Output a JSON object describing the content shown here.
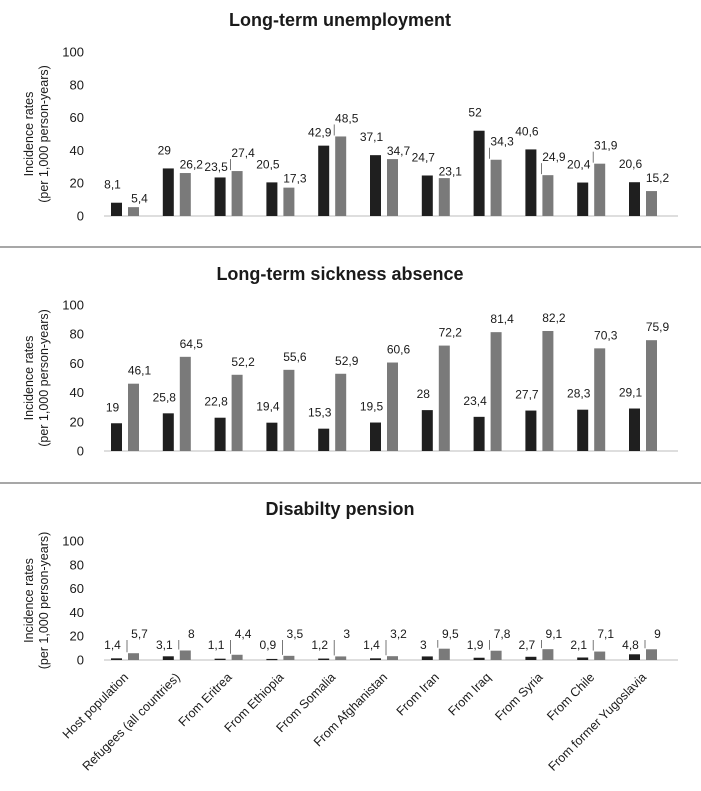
{
  "chart_data": [
    {
      "type": "bar",
      "title": "Long-term unemployment",
      "ylabel": [
        "Incidence rates",
        "(per 1,000 person-years)"
      ],
      "ylim": [
        0,
        100
      ],
      "yticks": [
        0,
        20,
        40,
        60,
        80,
        100
      ],
      "categories": [
        "Host population",
        "Refugees (all countries)",
        "From Eritrea",
        "From Ethiopia",
        "From Somalia",
        "From Afghanistan",
        "From Iran",
        "From Iraq",
        "From Syria",
        "From Chile",
        "From former Yugoslavia"
      ],
      "series": [
        {
          "name": "Series 1",
          "color": "#1f1f1f",
          "values": [
            8.1,
            29,
            23.5,
            20.5,
            42.9,
            37.1,
            24.7,
            52,
            40.6,
            20.4,
            20.6
          ],
          "labels": [
            "8,1",
            "29",
            "23,5",
            "20,5",
            "42,9",
            "37,1",
            "24,7",
            "52",
            "40,6",
            "20,4",
            "20,6"
          ]
        },
        {
          "name": "Series 2",
          "color": "#7a7a7a",
          "values": [
            5.4,
            26.2,
            27.4,
            17.3,
            48.5,
            34.7,
            23.1,
            34.3,
            24.9,
            31.9,
            15.2
          ],
          "labels": [
            "5,4",
            "26,2",
            "27,4",
            "17,3",
            "48,5",
            "34,7",
            "23,1",
            "34,3",
            "24,9",
            "31,9",
            "15,2"
          ]
        }
      ]
    },
    {
      "type": "bar",
      "title": "Long-term sickness absence",
      "ylabel": [
        "Incidence rates",
        "(per 1,000 person-years)"
      ],
      "ylim": [
        0,
        100
      ],
      "yticks": [
        0,
        20,
        40,
        60,
        80,
        100
      ],
      "categories": [
        "Host population",
        "Refugees (all countries)",
        "From Eritrea",
        "From Ethiopia",
        "From Somalia",
        "From Afghanistan",
        "From Iran",
        "From Iraq",
        "From Syria",
        "From Chile",
        "From former Yugoslavia"
      ],
      "series": [
        {
          "name": "Series 1",
          "color": "#1f1f1f",
          "values": [
            19,
            25.8,
            22.8,
            19.4,
            15.3,
            19.5,
            28,
            23.4,
            27.7,
            28.3,
            29.1
          ],
          "labels": [
            "19",
            "25,8",
            "22,8",
            "19,4",
            "15,3",
            "19,5",
            "28",
            "23,4",
            "27,7",
            "28,3",
            "29,1"
          ]
        },
        {
          "name": "Series 2",
          "color": "#7a7a7a",
          "values": [
            46.1,
            64.5,
            52.2,
            55.6,
            52.9,
            60.6,
            72.2,
            81.4,
            82.2,
            70.3,
            75.9
          ],
          "labels": [
            "46,1",
            "64,5",
            "52,2",
            "55,6",
            "52,9",
            "60,6",
            "72,2",
            "81,4",
            "82,2",
            "70,3",
            "75,9"
          ]
        }
      ]
    },
    {
      "type": "bar",
      "title": "Disabilty pension",
      "ylabel": [
        "Incidence rates",
        "(per 1,000 person-years)"
      ],
      "ylim": [
        0,
        100
      ],
      "yticks": [
        0,
        20,
        40,
        60,
        80,
        100
      ],
      "categories": [
        "Host population",
        "Refugees (all countries)",
        "From Eritrea",
        "From Ethiopia",
        "From Somalia",
        "From Afghanistan",
        "From Iran",
        "From Iraq",
        "From Syria",
        "From Chile",
        "From former Yugoslavia"
      ],
      "series": [
        {
          "name": "Series 1",
          "color": "#1f1f1f",
          "values": [
            1.4,
            3.1,
            1.1,
            0.9,
            1.2,
            1.4,
            3,
            1.9,
            2.7,
            2.1,
            4.8
          ],
          "labels": [
            "1,4",
            "3,1",
            "1,1",
            "0,9",
            "1,2",
            "1,4",
            "3",
            "1,9",
            "2,7",
            "2,1",
            "4,8"
          ]
        },
        {
          "name": "Series 2",
          "color": "#7a7a7a",
          "values": [
            5.7,
            8,
            4.4,
            3.5,
            3,
            3.2,
            9.5,
            7.8,
            9.1,
            7.1,
            9
          ],
          "labels": [
            "5,7",
            "8",
            "4,4",
            "3,5",
            "3",
            "3,2",
            "9,5",
            "7,8",
            "9,1",
            "7,1",
            "9"
          ]
        }
      ]
    }
  ]
}
